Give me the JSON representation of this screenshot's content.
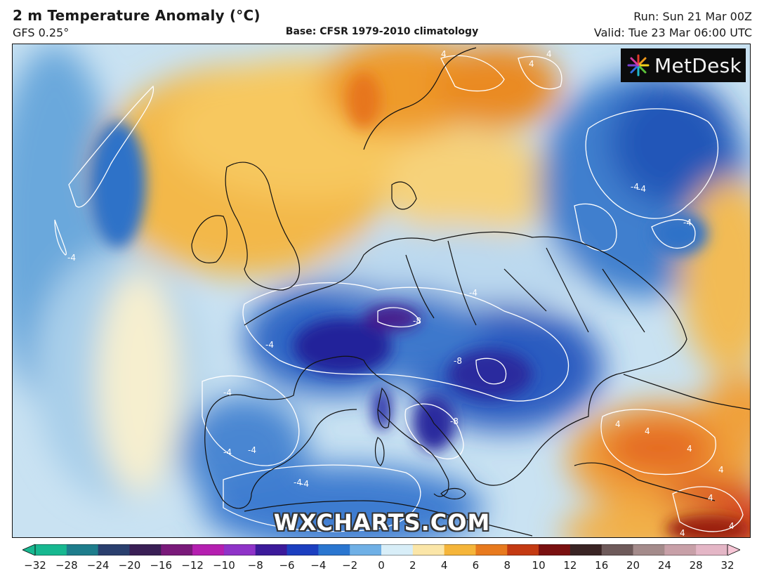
{
  "header": {
    "title": "2 m Temperature Anomaly (°C)",
    "model": "GFS 0.25°",
    "base": "Base: CFSR 1979-2010 climatology",
    "run": "Run: Sun 21 Mar 00Z",
    "valid": "Valid: Tue 23 Mar 06:00 UTC"
  },
  "logo": {
    "text": "MetDesk",
    "icon": "sunburst-icon"
  },
  "watermark": "WXCHARTS.COM",
  "map": {
    "region": "Europe",
    "contour_labels": [
      "-4",
      "-4",
      "-4",
      "-4",
      "-4",
      "-4",
      "-4",
      "-4",
      "-4",
      "-8",
      "-8",
      "-8",
      "4",
      "4",
      "4",
      "4",
      "4",
      "4",
      "4",
      "4",
      "4",
      "-4",
      "-4",
      "4"
    ]
  },
  "colorbar": {
    "ticks": [
      "−32",
      "−28",
      "−24",
      "−20",
      "−16",
      "−12",
      "−10",
      "−8",
      "−6",
      "−4",
      "−2",
      "0",
      "2",
      "4",
      "6",
      "8",
      "10",
      "12",
      "16",
      "20",
      "24",
      "28",
      "32"
    ],
    "colors": [
      "#17b890",
      "#1e7d8c",
      "#2a3f6e",
      "#3a1f55",
      "#7a1a7a",
      "#b51fb0",
      "#8f33c8",
      "#3c1a9a",
      "#1c3fc0",
      "#2a76d0",
      "#6fb0e6",
      "#d8eef8",
      "#fbe6a8",
      "#f5b53a",
      "#e87a1e",
      "#c43a12",
      "#7a1010",
      "#3a2424",
      "#6e5a5a",
      "#a48b8b",
      "#c8a0a8",
      "#e4b6c6",
      "#f7c6d6"
    ]
  }
}
